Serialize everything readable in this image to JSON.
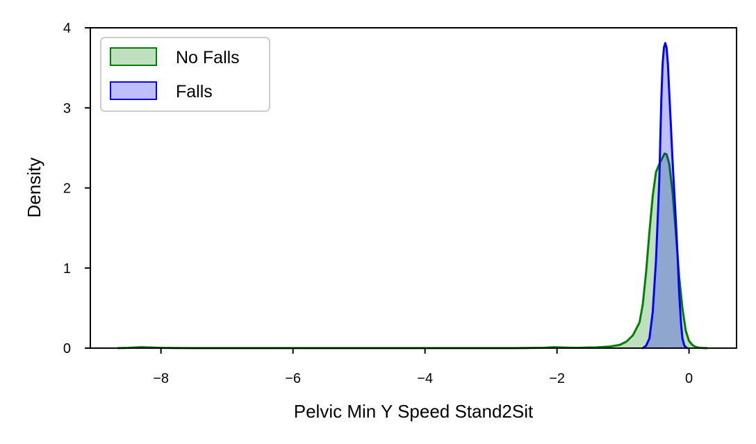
{
  "chart_data": {
    "type": "area",
    "title": "",
    "xlabel": "Pelvic Min Y Speed Stand2Sit",
    "ylabel": "Density",
    "xlim": [
      -9.07,
      0.72
    ],
    "ylim": [
      0,
      4
    ],
    "x_ticks": [
      -8,
      -6,
      -4,
      -2,
      0
    ],
    "x_tick_labels": [
      "−8",
      "−6",
      "−4",
      "−2",
      "0"
    ],
    "y_ticks": [
      0,
      1,
      2,
      3,
      4
    ],
    "y_tick_labels": [
      "0",
      "1",
      "2",
      "3",
      "4"
    ],
    "grid": false,
    "legend_position": "upper-left",
    "series": [
      {
        "name": "No Falls",
        "color": "#008000",
        "fill_color": "#008000",
        "fill_opacity": 0.25,
        "x": [
          -8.65,
          -8.5,
          -8.3,
          -8.15,
          -8.0,
          -7.5,
          -6.0,
          -4.0,
          -2.6,
          -2.2,
          -2.05,
          -1.9,
          -1.7,
          -1.55,
          -1.4,
          -1.2,
          -1.05,
          -0.95,
          -0.85,
          -0.75,
          -0.7,
          -0.65,
          -0.6,
          -0.55,
          -0.5,
          -0.45,
          -0.4,
          -0.37,
          -0.34,
          -0.3,
          -0.25,
          -0.2,
          -0.15,
          -0.1,
          -0.05,
          0.0,
          0.05,
          0.1,
          0.15,
          0.2,
          0.27
        ],
        "y": [
          0.0,
          0.003,
          0.012,
          0.008,
          0.003,
          0.0,
          0.0,
          0.0,
          0.0,
          0.004,
          0.012,
          0.008,
          0.003,
          0.008,
          0.01,
          0.02,
          0.04,
          0.08,
          0.16,
          0.32,
          0.55,
          0.95,
          1.45,
          1.9,
          2.2,
          2.3,
          2.38,
          2.43,
          2.42,
          2.3,
          1.95,
          1.45,
          0.9,
          0.5,
          0.22,
          0.09,
          0.04,
          0.015,
          0.006,
          0.002,
          0.0
        ]
      },
      {
        "name": "Falls",
        "color": "#0000ff",
        "fill_color": "#0000ff",
        "fill_opacity": 0.25,
        "x": [
          -0.7,
          -0.65,
          -0.6,
          -0.55,
          -0.5,
          -0.45,
          -0.42,
          -0.4,
          -0.38,
          -0.36,
          -0.34,
          -0.32,
          -0.3,
          -0.27,
          -0.25,
          -0.22,
          -0.2,
          -0.17,
          -0.15,
          -0.12,
          -0.1,
          -0.07,
          -0.03
        ],
        "y": [
          0.0,
          0.03,
          0.12,
          0.45,
          1.1,
          2.1,
          3.1,
          3.55,
          3.75,
          3.81,
          3.75,
          3.55,
          3.2,
          2.7,
          2.35,
          1.9,
          1.6,
          1.1,
          0.7,
          0.3,
          0.12,
          0.03,
          0.0
        ]
      }
    ]
  }
}
